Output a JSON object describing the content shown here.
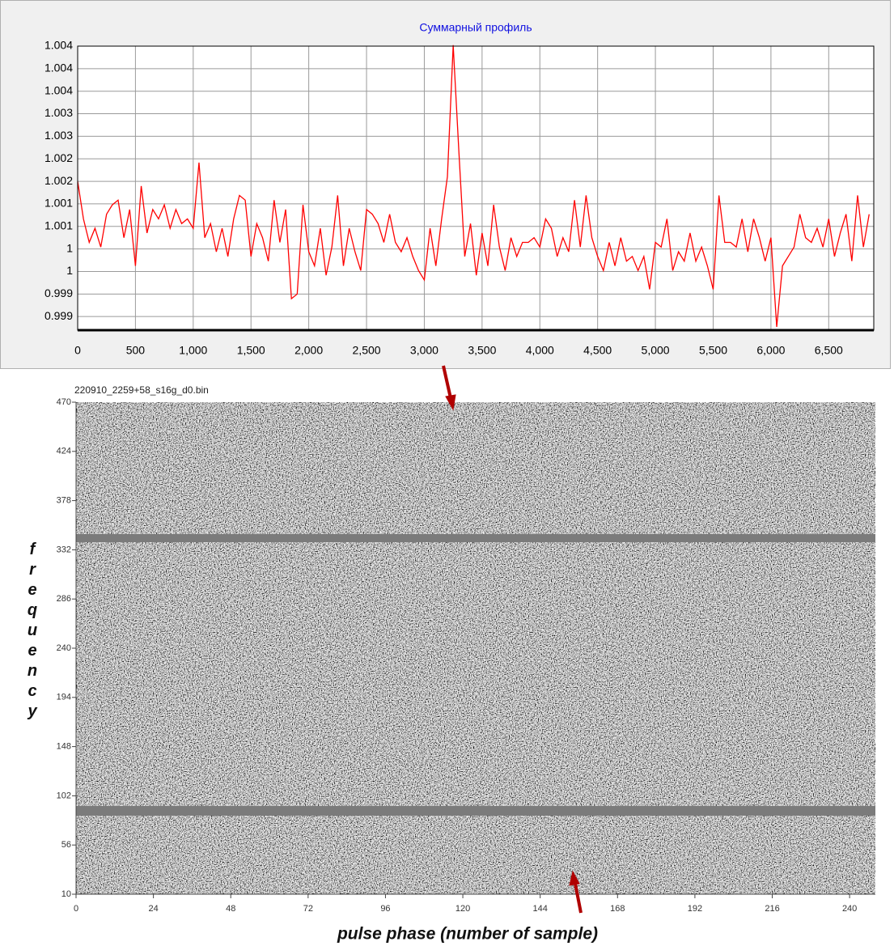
{
  "chart_data": [
    {
      "type": "line",
      "title": "Суммарный профиль",
      "color": "#ff0000",
      "grid": true,
      "xlim": [
        0,
        6890
      ],
      "ylim": [
        0.99843,
        1.00448
      ],
      "xticks": [
        0,
        500,
        {
          "value": 1000,
          "label": "1,000"
        },
        {
          "value": 1500,
          "label": "1,500"
        },
        {
          "value": 2000,
          "label": "2,000"
        },
        {
          "value": 2500,
          "label": "2,500"
        },
        {
          "value": 3000,
          "label": "3,000"
        },
        {
          "value": 3500,
          "label": "3,500"
        },
        {
          "value": 4000,
          "label": "4,000"
        },
        {
          "value": 4500,
          "label": "4,500"
        },
        {
          "value": 5000,
          "label": "5,000"
        },
        {
          "value": 5500,
          "label": "5,500"
        },
        {
          "value": 6000,
          "label": "6,000"
        },
        {
          "value": 6500,
          "label": "6,500"
        }
      ],
      "yticks": [
        {
          "value": 0.99872,
          "label": "0.999"
        },
        {
          "value": 0.9992,
          "label": "0.999"
        },
        {
          "value": 0.99968,
          "label": "1"
        },
        {
          "value": 1.00016,
          "label": "1"
        },
        {
          "value": 1.00064,
          "label": "1.001"
        },
        {
          "value": 1.00112,
          "label": "1.001"
        },
        {
          "value": 1.0016,
          "label": "1.002"
        },
        {
          "value": 1.00208,
          "label": "1.002"
        },
        {
          "value": 1.00256,
          "label": "1.003"
        },
        {
          "value": 1.00304,
          "label": "1.003"
        },
        {
          "value": 1.00352,
          "label": "1.004"
        },
        {
          "value": 1.004,
          "label": "1.004"
        },
        {
          "value": 1.00448,
          "label": "1.004"
        }
      ],
      "x": [
        0,
        50,
        100,
        150,
        200,
        250,
        300,
        350,
        400,
        450,
        500,
        550,
        600,
        650,
        700,
        750,
        800,
        850,
        900,
        950,
        1000,
        1050,
        1100,
        1150,
        1200,
        1250,
        1300,
        1350,
        1400,
        1450,
        1500,
        1550,
        1600,
        1650,
        1700,
        1750,
        1800,
        1850,
        1900,
        1950,
        2000,
        2050,
        2100,
        2150,
        2200,
        2250,
        2300,
        2350,
        2400,
        2450,
        2500,
        2550,
        2600,
        2650,
        2700,
        2750,
        2800,
        2850,
        2900,
        2950,
        3000,
        3050,
        3100,
        3150,
        3200,
        3250,
        3300,
        3350,
        3400,
        3450,
        3500,
        3550,
        3600,
        3650,
        3700,
        3750,
        3800,
        3850,
        3900,
        3950,
        4000,
        4050,
        4100,
        4150,
        4200,
        4250,
        4300,
        4350,
        4400,
        4450,
        4500,
        4550,
        4600,
        4650,
        4700,
        4750,
        4800,
        4850,
        4900,
        4950,
        5000,
        5050,
        5100,
        5150,
        5200,
        5250,
        5300,
        5350,
        5400,
        5450,
        5500,
        5550,
        5600,
        5650,
        5700,
        5750,
        5800,
        5850,
        5900,
        5950,
        6000,
        6050,
        6100,
        6150,
        6200,
        6250,
        6300,
        6350,
        6400,
        6450,
        6500,
        6550,
        6600,
        6650,
        6700,
        6750,
        6800,
        6850
      ],
      "values": [
        1.0016,
        1.0008,
        1.0003,
        1.0006,
        1.0002,
        1.0009,
        1.0011,
        1.0012,
        1.0004,
        1.001,
        0.9998,
        1.0015,
        1.0005,
        1.001,
        1.0008,
        1.0011,
        1.0006,
        1.001,
        1.0007,
        1.0008,
        1.0006,
        1.002,
        1.0004,
        1.0007,
        1.0001,
        1.0006,
        1.0,
        1.0008,
        1.0013,
        1.0012,
        1.0,
        1.0007,
        1.0004,
        0.9999,
        1.0012,
        1.0003,
        1.001,
        0.9991,
        0.9992,
        1.0011,
        1.0001,
        0.9998,
        1.0006,
        0.9996,
        1.0002,
        1.0013,
        0.9998,
        1.0006,
        1.0001,
        0.9997,
        1.001,
        1.0009,
        1.0007,
        1.0003,
        1.0009,
        1.0003,
        1.0001,
        1.0004,
        1.0,
        0.9997,
        0.9995,
        1.0006,
        0.9998,
        1.0008,
        1.0017,
        1.0045,
        1.0022,
        1.0,
        1.0007,
        0.9996,
        1.0005,
        0.9998,
        1.0011,
        1.0002,
        0.9997,
        1.0004,
        1.0,
        1.0003,
        1.0003,
        1.0004,
        1.0002,
        1.0008,
        1.0006,
        1.0,
        1.0004,
        1.0001,
        1.0012,
        1.0002,
        1.0013,
        1.0004,
        1.0,
        0.9997,
        1.0003,
        0.9998,
        1.0004,
        0.9999,
        1.0,
        0.9997,
        1.0,
        0.9993,
        1.0003,
        1.0002,
        1.0008,
        0.9997,
        1.0001,
        0.9999,
        1.0005,
        0.9999,
        1.0002,
        0.9998,
        0.9993,
        1.0013,
        1.0003,
        1.0003,
        1.0002,
        1.0008,
        1.0001,
        1.0008,
        1.0004,
        0.9999,
        1.0004,
        0.9985,
        0.9998,
        1.0,
        1.0002,
        1.0009,
        1.0004,
        1.0003,
        1.0006,
        1.0002,
        1.0008,
        1.0,
        1.0005,
        1.0009,
        0.9999,
        1.0013,
        1.0002,
        1.0009
      ]
    },
    {
      "type": "heatmap",
      "title": "220910_2259+58_s16g_d0.bin",
      "xlabel": "pulse phase (number of sample)",
      "ylabel": "frequency",
      "xlim": [
        0,
        248
      ],
      "ylim": [
        10,
        470
      ],
      "xticks": [
        0,
        24,
        48,
        72,
        96,
        120,
        144,
        168,
        192,
        216,
        240
      ],
      "yticks": [
        10,
        56,
        102,
        148,
        194,
        240,
        286,
        332,
        378,
        424,
        470
      ]
    }
  ]
}
